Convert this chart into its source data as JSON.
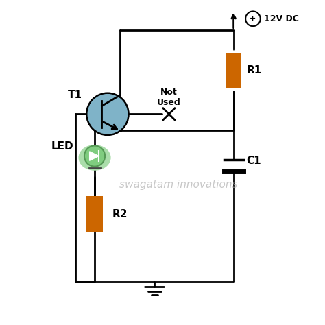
{
  "bg_color": "#ffffff",
  "line_color": "#000000",
  "resistor_color": "#cc6600",
  "transistor_fill": "#7fb3c8",
  "led_fill": "#7fcc7f",
  "led_glow": "#aaddaa",
  "wire_lw": 2.0,
  "title_text": "swagatam innovations",
  "title_color": "#aaaaaa",
  "title_fontsize": 11,
  "supply_label": "12V DC",
  "r1_label": "R1",
  "r2_label": "R2",
  "c1_label": "C1",
  "t1_label": "T1",
  "led_label": "LED",
  "not_used_label": "Not\nUsed"
}
